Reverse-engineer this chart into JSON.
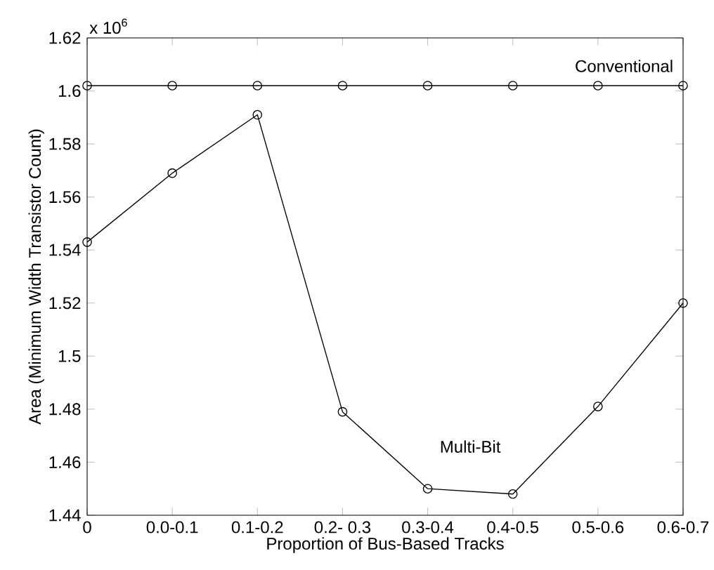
{
  "chart_data": {
    "type": "line",
    "xlabel": "Proportion of Bus-Based Tracks",
    "ylabel": "Area (Minimum Width Transistor Count)",
    "annotations": [
      "x 10$^{6}$"
    ],
    "categories": [
      "0",
      "0.0-0.1",
      "0.1-0.2",
      "0.2- 0.3",
      "0.3-0.4",
      "0.4-0.5",
      "0.5-0.6",
      "0.6-0.7"
    ],
    "series": [
      {
        "name": "Conventional",
        "color": "#000000",
        "values": [
          1.602,
          1.602,
          1.602,
          1.602,
          1.602,
          1.602,
          1.602,
          1.602
        ]
      },
      {
        "name": "Multi-Bit",
        "color": "#000000",
        "values": [
          1.543,
          1.569,
          1.591,
          1.479,
          1.45,
          1.448,
          1.481,
          1.52
        ]
      }
    ],
    "ylim": [
      1.44,
      1.62
    ],
    "yticks": [
      1.44,
      1.46,
      1.48,
      1.5,
      1.52,
      1.54,
      1.56,
      1.58,
      1.6,
      1.62
    ],
    "grid": false,
    "legend": false,
    "marker": "circle",
    "line_style": "solid"
  }
}
